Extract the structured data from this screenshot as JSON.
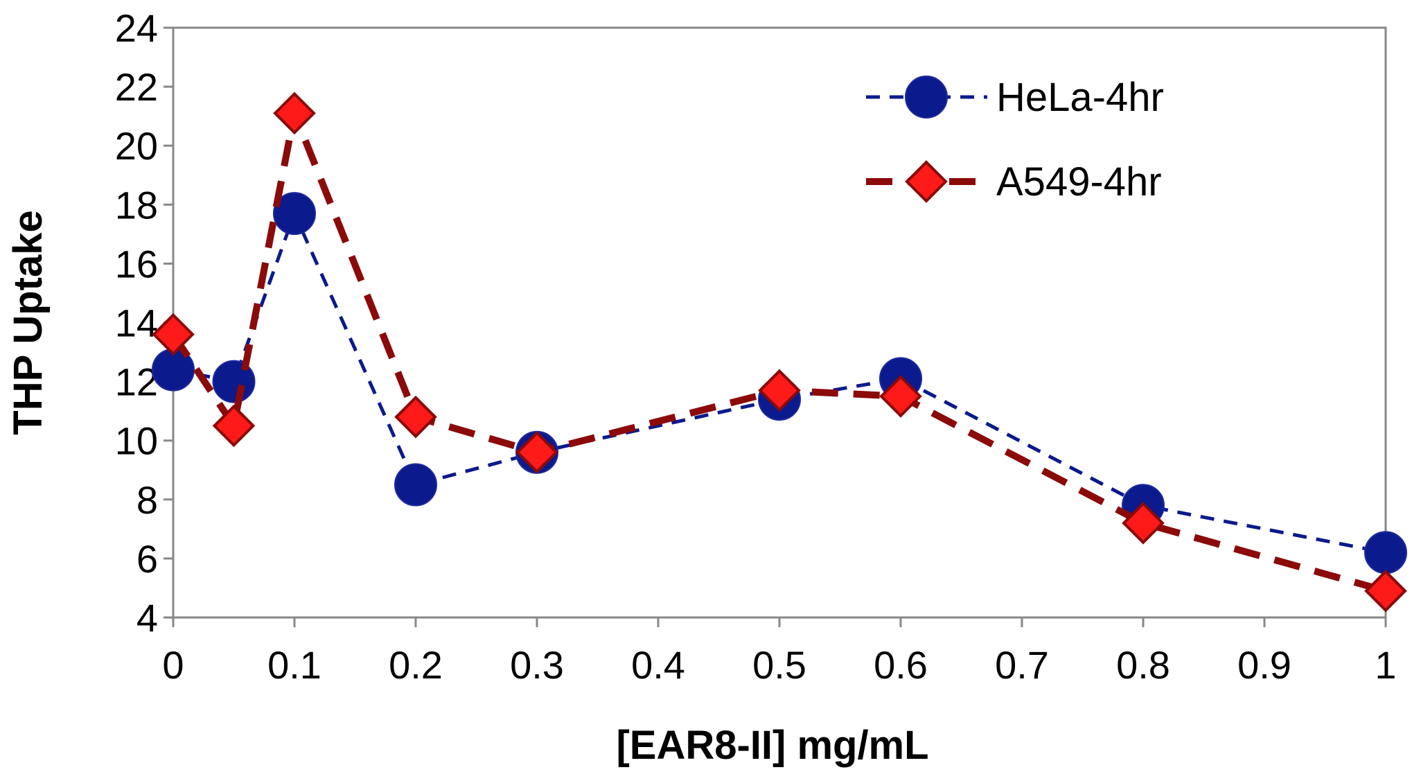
{
  "chart_data": {
    "type": "line",
    "title": "",
    "xlabel": "[EAR8-II] mg/mL",
    "ylabel": "THP Uptake",
    "xlim": [
      0,
      1
    ],
    "ylim": [
      4,
      24
    ],
    "x_ticks": [
      0,
      0.1,
      0.2,
      0.3,
      0.4,
      0.5,
      0.6,
      0.7,
      0.8,
      0.9,
      1
    ],
    "x_tick_labels": [
      "0",
      "0.1",
      "0.2",
      "0.3",
      "0.4",
      "0.5",
      "0.6",
      "0.7",
      "0.8",
      "0.9",
      "1"
    ],
    "y_ticks": [
      4,
      6,
      8,
      10,
      12,
      14,
      16,
      18,
      20,
      22,
      24
    ],
    "y_tick_labels": [
      "4",
      "6",
      "8",
      "10",
      "12",
      "14",
      "16",
      "18",
      "20",
      "22",
      "24"
    ],
    "grid": false,
    "legend_position": "top-right",
    "x": [
      0,
      0.05,
      0.1,
      0.2,
      0.3,
      0.5,
      0.6,
      0.8,
      1
    ],
    "series": [
      {
        "name": "HeLa-4hr",
        "color": "#0b1a8c",
        "marker": "circle",
        "line_style": "dashed",
        "values": [
          12.4,
          12.0,
          17.7,
          8.5,
          9.6,
          11.4,
          12.1,
          7.8,
          6.2
        ]
      },
      {
        "name": "A549-4hr",
        "color": "#8b0a0a",
        "marker_fill": "#ff1a1a",
        "marker": "diamond",
        "line_style": "dashed",
        "values": [
          13.6,
          10.5,
          21.1,
          10.8,
          9.6,
          11.7,
          11.5,
          7.2,
          4.9
        ]
      }
    ]
  }
}
